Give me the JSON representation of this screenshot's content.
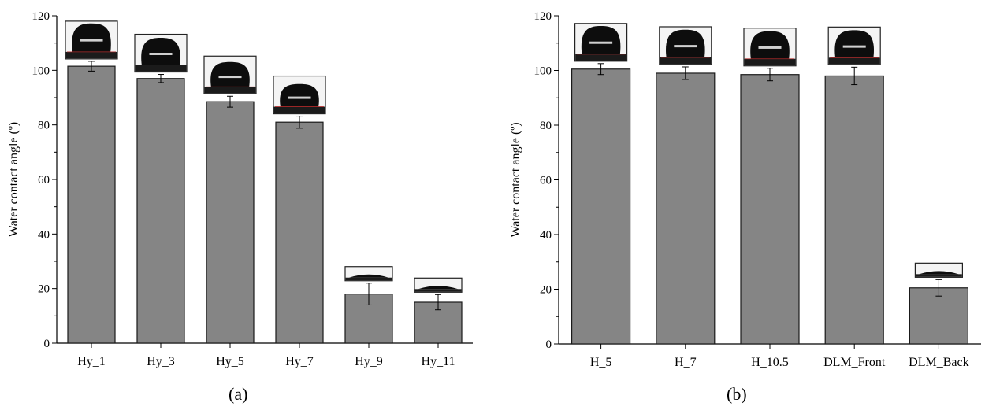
{
  "chart_data": [
    {
      "type": "bar",
      "panel_label": "(a)",
      "ylabel": "Water contact angle (º)",
      "xlabel": "",
      "ylim": [
        0,
        120
      ],
      "yticks": [
        0,
        20,
        40,
        60,
        80,
        100,
        120
      ],
      "categories": [
        "Hy_1",
        "Hy_3",
        "Hy_5",
        "Hy_7",
        "Hy_9",
        "Hy_11"
      ],
      "values": [
        101.5,
        97,
        88.5,
        81,
        18,
        15
      ],
      "errors": [
        1.8,
        1.5,
        2.0,
        2.2,
        4.0,
        2.8
      ],
      "droplet_inset_angles": [
        101.5,
        97,
        88.5,
        81,
        18,
        15
      ],
      "bar_color": "#858585",
      "grid": false,
      "legend": "none"
    },
    {
      "type": "bar",
      "panel_label": "(b)",
      "ylabel": "Water contact angle (º)",
      "xlabel": "",
      "ylim": [
        0,
        120
      ],
      "yticks": [
        0,
        20,
        40,
        60,
        80,
        100,
        120
      ],
      "categories": [
        "H_5",
        "H_7",
        "H_10.5",
        "DLM_Front",
        "DLM_Back"
      ],
      "values": [
        100.5,
        99,
        98.5,
        98,
        20.5
      ],
      "errors": [
        2.0,
        2.3,
        2.3,
        3.2,
        3.0
      ],
      "droplet_inset_angles": [
        100.5,
        99,
        98.5,
        98,
        20.5
      ],
      "bar_color": "#858585",
      "grid": false,
      "legend": "none"
    }
  ]
}
